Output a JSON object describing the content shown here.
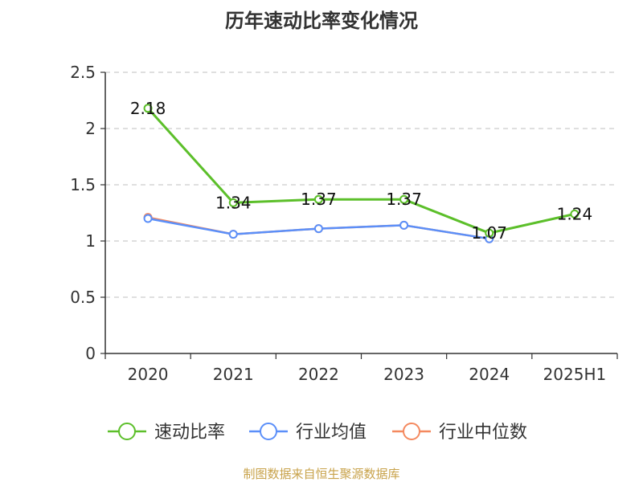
{
  "chart_data": {
    "type": "line",
    "title": "历年速动比率变化情况",
    "categories": [
      "2020",
      "2021",
      "2022",
      "2023",
      "2024",
      "2025H1"
    ],
    "ylim": [
      0,
      2.5
    ],
    "yticks": [
      "0",
      "0.5",
      "1",
      "1.5",
      "2",
      "2.5"
    ],
    "grid": true,
    "legend_position": "bottom",
    "series": [
      {
        "name": "速动比率",
        "color": "#5cbf2a",
        "values": [
          2.18,
          1.34,
          1.37,
          1.37,
          1.07,
          1.24
        ],
        "labels": [
          "2.18",
          "1.34",
          "1.37",
          "1.37",
          "1.07",
          "1.24"
        ]
      },
      {
        "name": "行业均值",
        "color": "#5b8ff9",
        "values": [
          1.2,
          1.06,
          1.11,
          1.14,
          1.02,
          null
        ]
      },
      {
        "name": "行业中位数",
        "color": "#f4895f",
        "values": [
          1.21,
          1.06,
          1.11,
          1.14,
          1.02,
          null
        ]
      }
    ],
    "source": "制图数据来自恒生聚源数据库"
  }
}
